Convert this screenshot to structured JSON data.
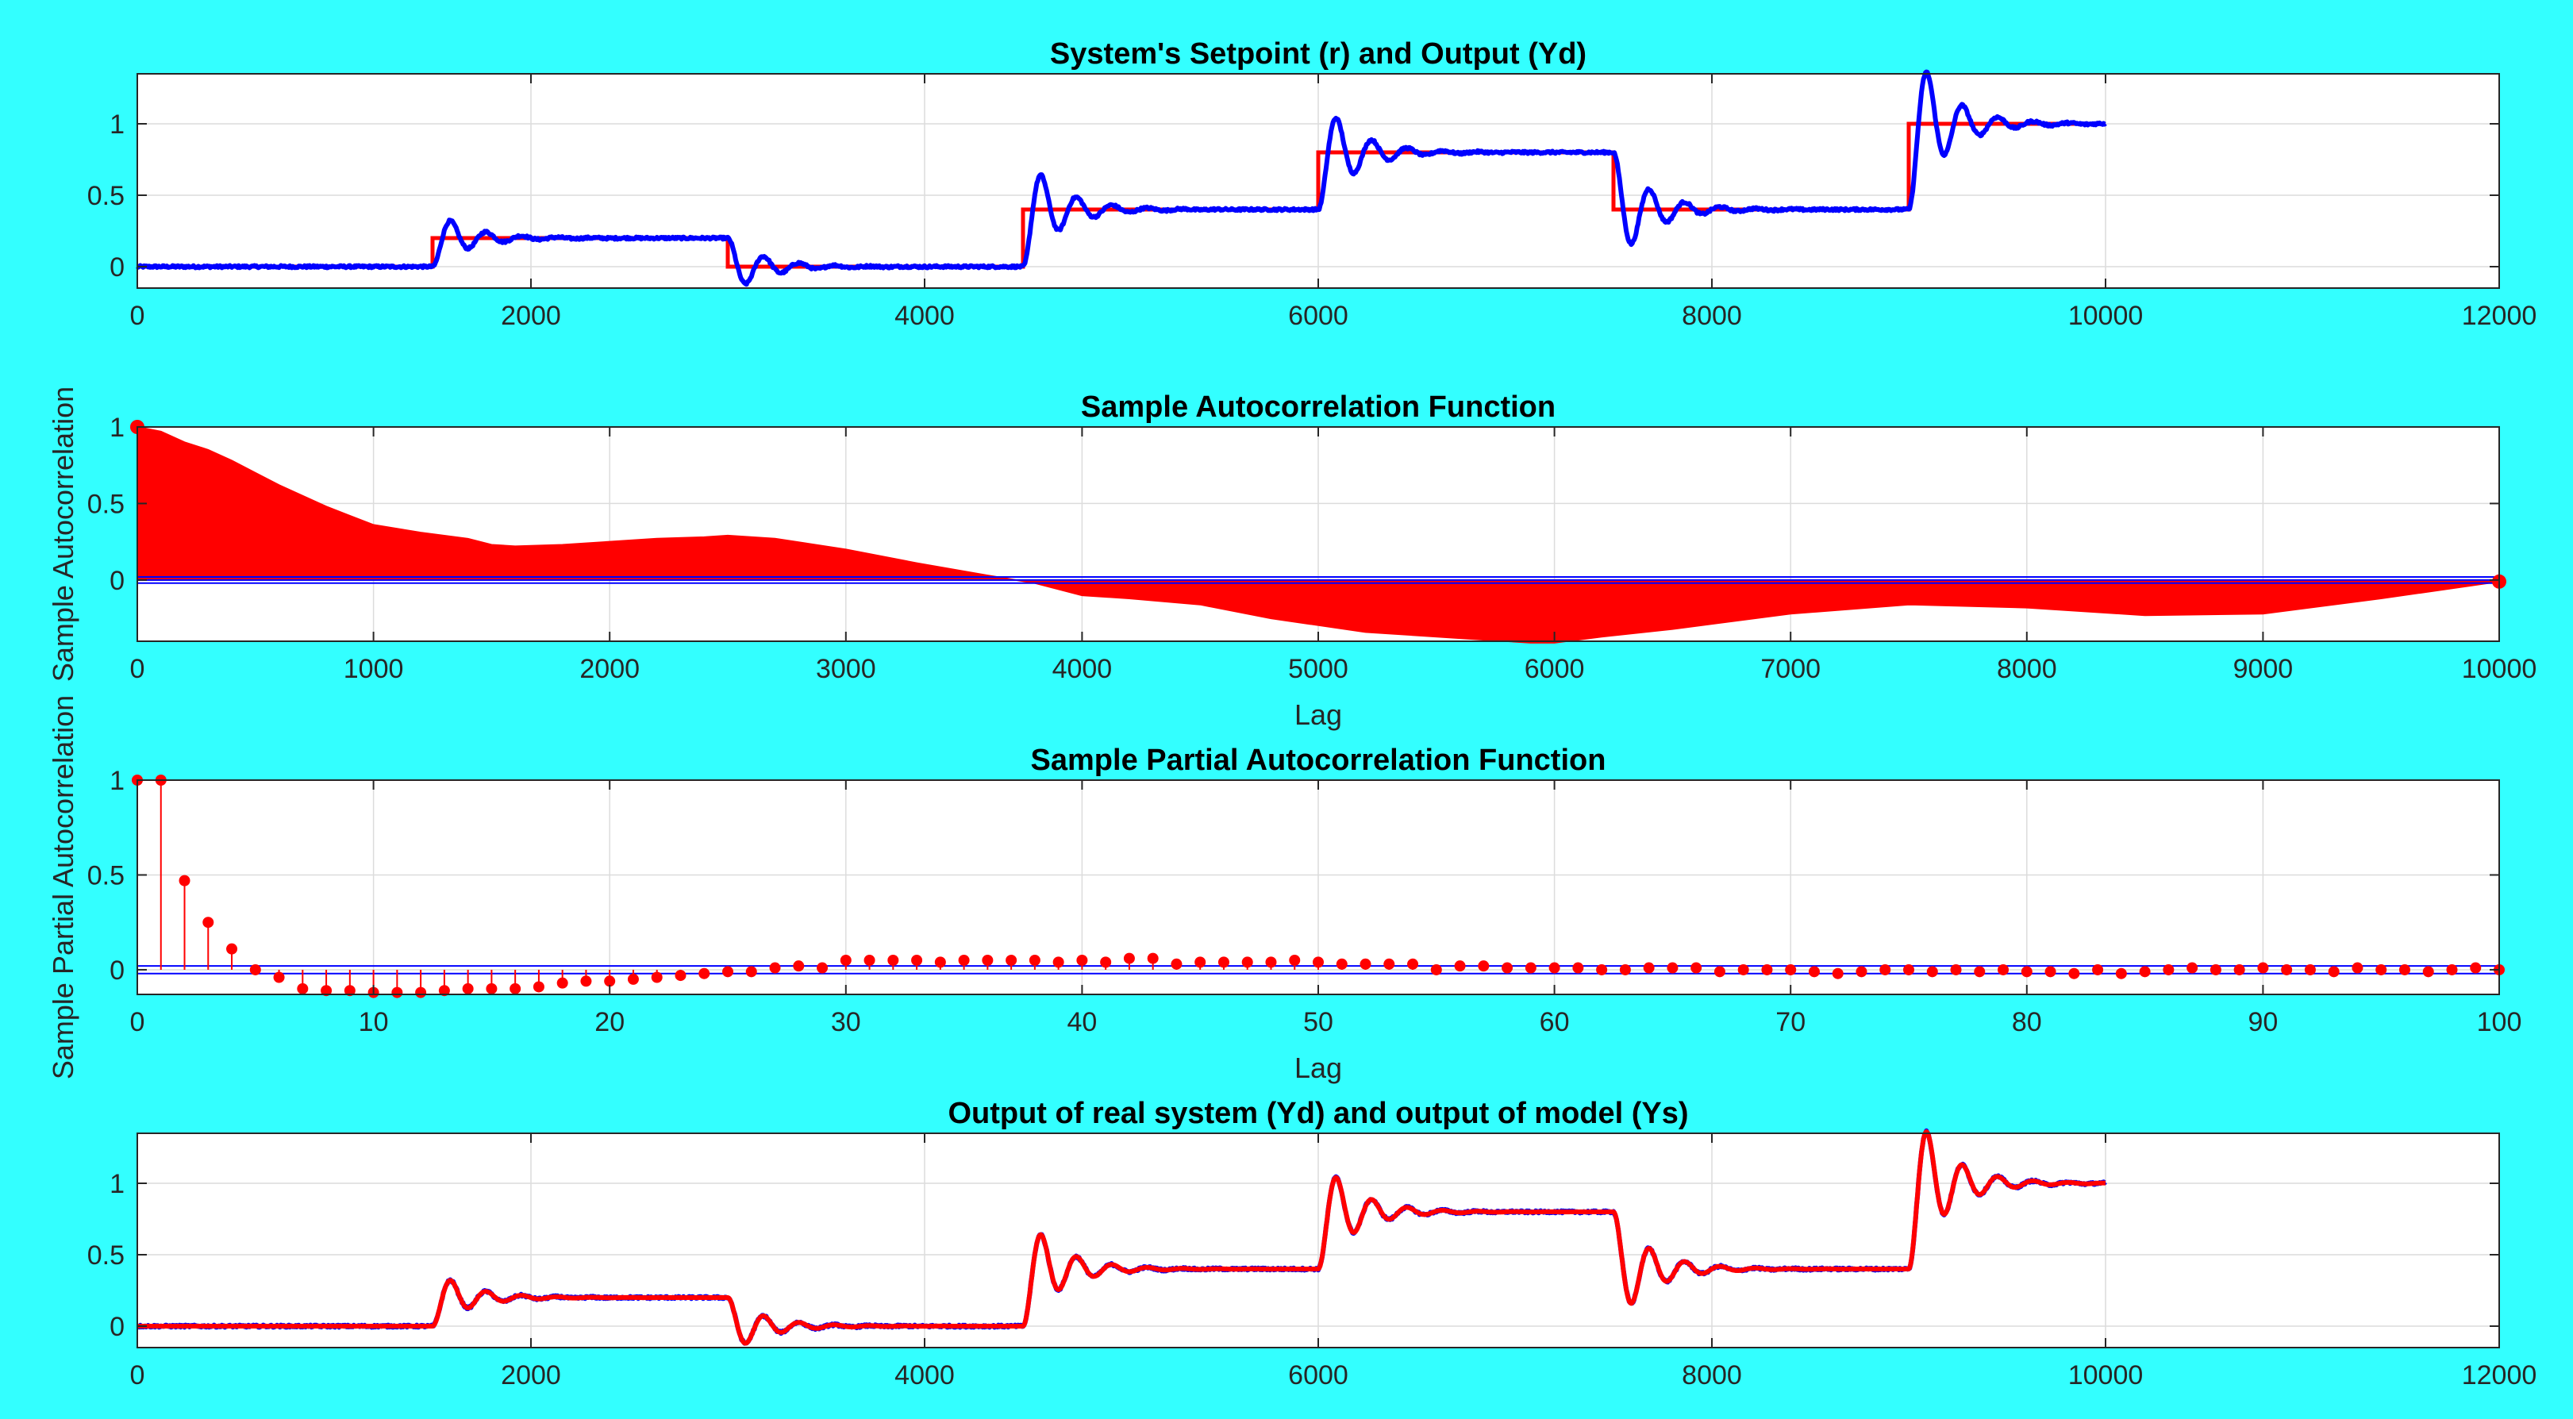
{
  "figure": {
    "background": "#33FFFF"
  },
  "chart_data": [
    {
      "id": "setpoint",
      "type": "line",
      "title": "System's Setpoint (r) and Output (Yd)",
      "xlabel": "",
      "ylabel": "",
      "xlim": [
        0,
        12000
      ],
      "ylim": [
        -0.15,
        1.35
      ],
      "xticks": [
        0,
        2000,
        4000,
        6000,
        8000,
        10000,
        12000
      ],
      "xticklabels": [
        "0",
        "2000",
        "4000",
        "6000",
        "8000",
        "10000",
        "12000"
      ],
      "yticks": [
        0,
        0.5,
        1
      ],
      "yticklabels": [
        "0",
        "0.5",
        "1"
      ],
      "grid": true,
      "series": [
        {
          "color": "#FF0000",
          "style": "step",
          "x": [
            0,
            1500,
            3000,
            4500,
            6000,
            7500,
            9000,
            10000
          ],
          "y": [
            0,
            0.2,
            0,
            0.4,
            0.8,
            0.4,
            1,
            1
          ]
        },
        {
          "color": "#0000FF",
          "style": "step-response",
          "steps": [
            {
              "t": 1500,
              "from": 0,
              "to": 0.2
            },
            {
              "t": 3000,
              "from": 0.2,
              "to": 0
            },
            {
              "t": 4500,
              "from": 0,
              "to": 0.4
            },
            {
              "t": 6000,
              "from": 0.4,
              "to": 0.8
            },
            {
              "t": 7500,
              "from": 0.8,
              "to": 0.4
            },
            {
              "t": 9000,
              "from": 0.4,
              "to": 1
            }
          ],
          "x_end": 10000,
          "peak_time": 90,
          "overshoot": 0.6,
          "noise": 0.008
        }
      ]
    },
    {
      "id": "acf",
      "type": "stem",
      "title": "Sample Autocorrelation Function",
      "xlabel": "Lag",
      "ylabel": "Sample Autocorrelation",
      "xlim": [
        0,
        10000
      ],
      "ylim": [
        -0.4,
        1
      ],
      "xticks": [
        0,
        1000,
        2000,
        3000,
        4000,
        5000,
        6000,
        7000,
        8000,
        9000,
        10000
      ],
      "xticklabels": [
        "0",
        "1000",
        "2000",
        "3000",
        "4000",
        "5000",
        "6000",
        "7000",
        "8000",
        "9000",
        "10000"
      ],
      "yticks": [
        0,
        0.5,
        1
      ],
      "yticklabels": [
        "0",
        "0.5",
        "1"
      ],
      "grid": true,
      "stem_color": "#FF0000",
      "bound_color": "#0000FF",
      "bounds": [
        0.02,
        -0.02
      ],
      "envelope": {
        "lag": [
          0,
          100,
          200,
          300,
          400,
          500,
          600,
          700,
          800,
          900,
          1000,
          1200,
          1400,
          1500,
          1600,
          1800,
          2000,
          2200,
          2400,
          2500,
          2700,
          3000,
          3300,
          3600,
          3800,
          4000,
          4200,
          4500,
          4800,
          5200,
          5600,
          5900,
          6000,
          6200,
          6500,
          7000,
          7500,
          8000,
          8500,
          9000,
          9500,
          10000
        ],
        "value": [
          1,
          0.97,
          0.9,
          0.85,
          0.78,
          0.7,
          0.62,
          0.55,
          0.48,
          0.42,
          0.36,
          0.31,
          0.27,
          0.23,
          0.22,
          0.23,
          0.25,
          0.27,
          0.28,
          0.29,
          0.27,
          0.2,
          0.11,
          0.03,
          -0.02,
          -0.1,
          -0.12,
          -0.16,
          -0.25,
          -0.34,
          -0.38,
          -0.41,
          -0.41,
          -0.37,
          -0.32,
          -0.22,
          -0.16,
          -0.18,
          -0.23,
          -0.22,
          -0.12,
          -0.01
        ]
      }
    },
    {
      "id": "pacf",
      "type": "stem",
      "title": "Sample Partial Autocorrelation Function",
      "xlabel": "Lag",
      "ylabel": "Sample Partial Autocorrelation",
      "xlim": [
        0,
        100
      ],
      "ylim": [
        -0.13,
        1
      ],
      "xticks": [
        0,
        10,
        20,
        30,
        40,
        50,
        60,
        70,
        80,
        90,
        100
      ],
      "xticklabels": [
        "0",
        "10",
        "20",
        "30",
        "40",
        "50",
        "60",
        "70",
        "80",
        "90",
        "100"
      ],
      "yticks": [
        0,
        0.5,
        1
      ],
      "yticklabels": [
        "0",
        "0.5",
        "1"
      ],
      "grid": true,
      "stem_color": "#FF0000",
      "bound_color": "#0000FF",
      "bounds": [
        0.02,
        -0.02
      ],
      "lags": [
        0,
        1,
        2,
        3,
        4,
        5,
        6,
        7,
        8,
        9,
        10,
        11,
        12,
        13,
        14,
        15,
        16,
        17,
        18,
        19,
        20,
        21,
        22,
        23,
        24,
        25,
        26,
        27,
        28,
        29,
        30,
        31,
        32,
        33,
        34,
        35,
        36,
        37,
        38,
        39,
        40,
        41,
        42,
        43,
        44,
        45,
        46,
        47,
        48,
        49,
        50,
        51,
        52,
        53,
        54,
        55,
        56,
        57,
        58,
        59,
        60,
        61,
        62,
        63,
        64,
        65,
        66,
        67,
        68,
        69,
        70,
        71,
        72,
        73,
        74,
        75,
        76,
        77,
        78,
        79,
        80,
        81,
        82,
        83,
        84,
        85,
        86,
        87,
        88,
        89,
        90,
        91,
        92,
        93,
        94,
        95,
        96,
        97,
        98,
        99,
        100
      ],
      "values": [
        1,
        1,
        0.47,
        0.25,
        0.11,
        0,
        -0.04,
        -0.1,
        -0.11,
        -0.11,
        -0.12,
        -0.12,
        -0.12,
        -0.11,
        -0.1,
        -0.1,
        -0.1,
        -0.09,
        -0.07,
        -0.06,
        -0.06,
        -0.05,
        -0.04,
        -0.03,
        -0.02,
        -0.01,
        -0.01,
        0.01,
        0.02,
        0.01,
        0.05,
        0.05,
        0.05,
        0.05,
        0.04,
        0.05,
        0.05,
        0.05,
        0.05,
        0.04,
        0.05,
        0.04,
        0.06,
        0.06,
        0.03,
        0.04,
        0.04,
        0.04,
        0.04,
        0.05,
        0.04,
        0.03,
        0.03,
        0.03,
        0.03,
        0,
        0.02,
        0.02,
        0.01,
        0.01,
        0.01,
        0.01,
        0,
        0,
        0.01,
        0.01,
        0.01,
        -0.01,
        0,
        0,
        0,
        -0.01,
        -0.02,
        -0.01,
        0,
        0,
        -0.01,
        0,
        -0.01,
        0,
        -0.01,
        -0.01,
        -0.02,
        0,
        -0.02,
        -0.01,
        0,
        0.01,
        0,
        0,
        0.01,
        0,
        0,
        -0.01,
        0.01,
        0,
        0,
        -0.01,
        0,
        0.01,
        0
      ]
    },
    {
      "id": "model",
      "type": "line",
      "title": "Output of real system (Yd) and output of model (Ys)",
      "xlabel": "",
      "ylabel": "",
      "xlim": [
        0,
        12000
      ],
      "ylim": [
        -0.15,
        1.35
      ],
      "xticks": [
        0,
        2000,
        4000,
        6000,
        8000,
        10000,
        12000
      ],
      "xticklabels": [
        "0",
        "2000",
        "4000",
        "6000",
        "8000",
        "10000",
        "12000"
      ],
      "yticks": [
        0,
        0.5,
        1
      ],
      "yticklabels": [
        "0",
        "0.5",
        "1"
      ],
      "grid": true,
      "series": [
        {
          "color": "#0000FF",
          "style": "step-response",
          "ref": "setpoint",
          "noise": 0.008
        },
        {
          "color": "#FF0000",
          "style": "step-response",
          "ref": "setpoint",
          "noise": 0
        }
      ]
    }
  ]
}
